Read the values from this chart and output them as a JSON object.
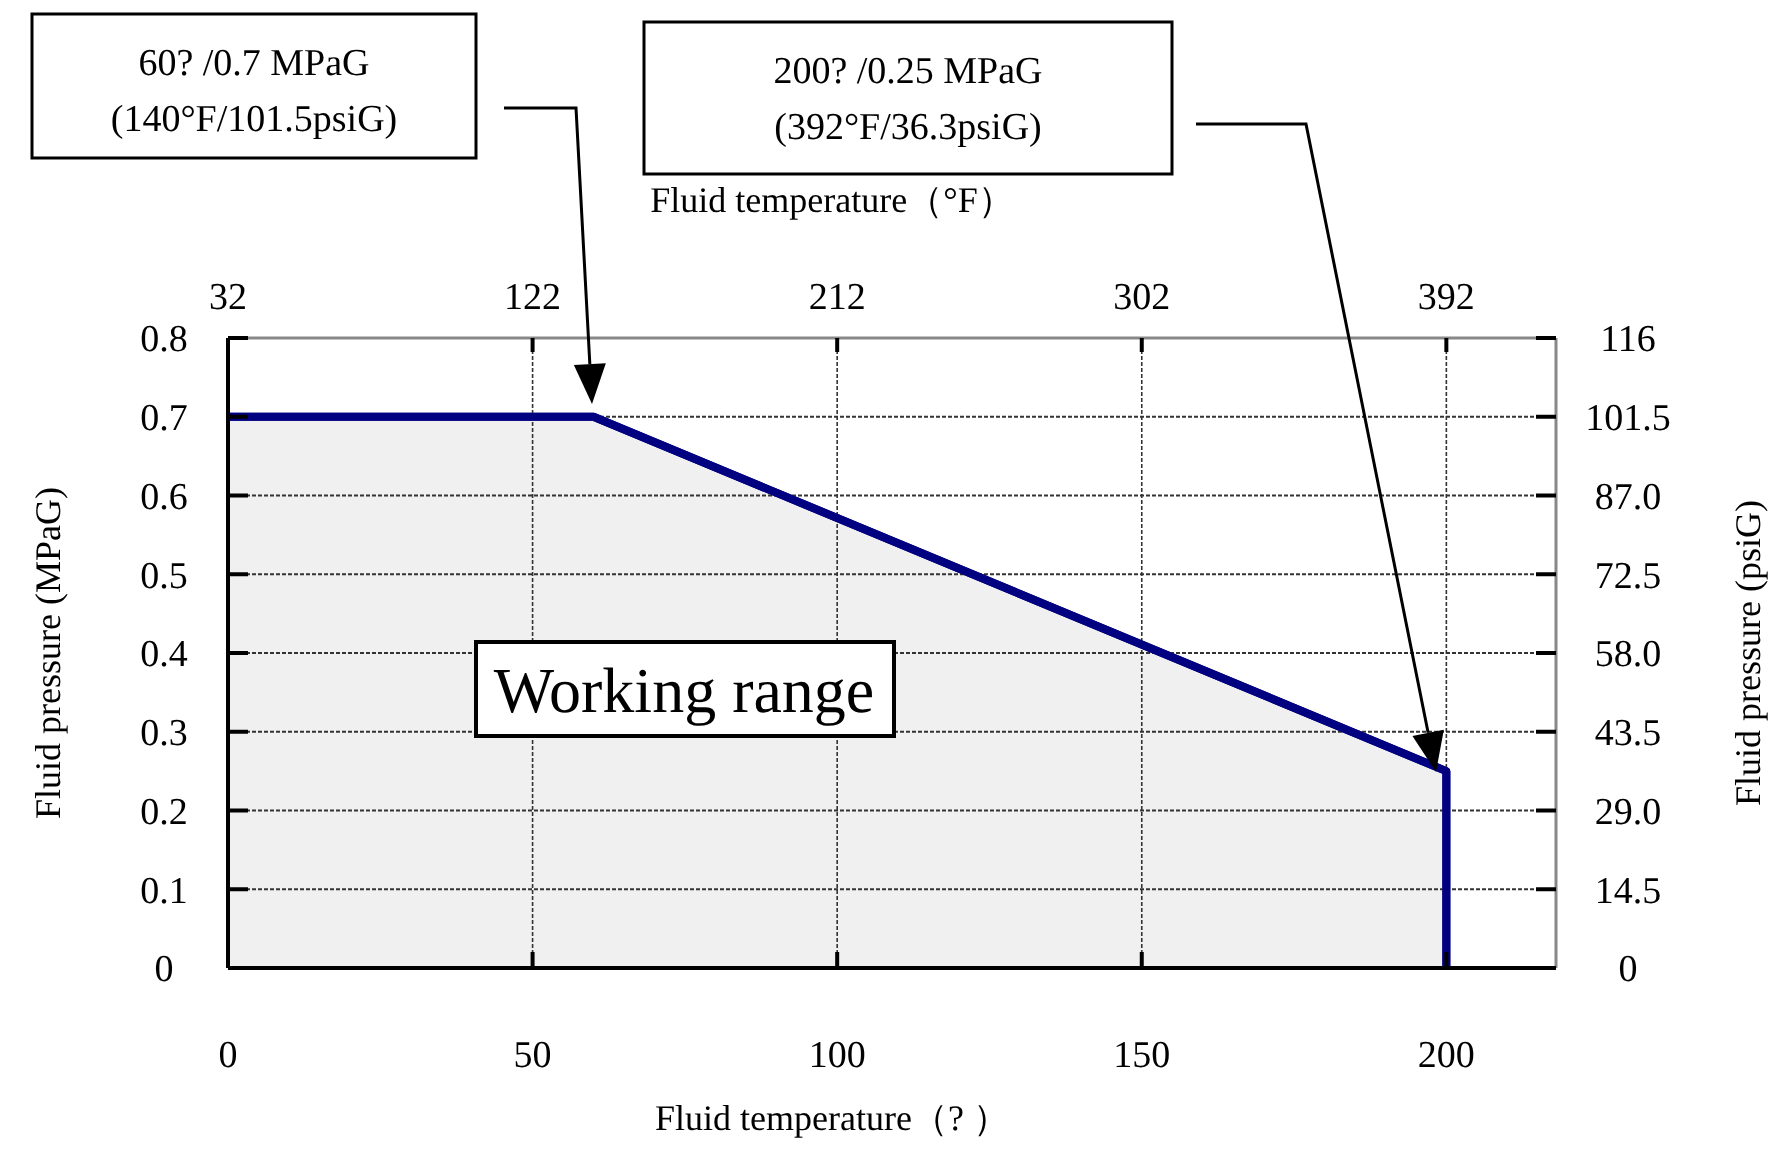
{
  "chart_data": {
    "type": "area",
    "xlabel": "Fluid temperature（? ）",
    "ylabel": "Fluid pressure (MPaG)",
    "x2label": "Fluid temperature（°F）",
    "y2label": "Fluid pressure (psiG)",
    "x": [
      0,
      60,
      200,
      200
    ],
    "series": [
      {
        "color": "#000080",
        "values": [
          0.7,
          0.7,
          0.25,
          0
        ]
      }
    ],
    "xlim": [
      0,
      218
    ],
    "xticks": [
      0,
      50,
      100,
      150,
      200
    ],
    "x2lim": [
      32,
      424.4
    ],
    "x2ticks": [
      32,
      122,
      212,
      302,
      392
    ],
    "ylim": [
      0,
      0.8
    ],
    "yticks": [
      0,
      0.1,
      0.2,
      0.3,
      0.4,
      0.5,
      0.6,
      0.7,
      0.8
    ],
    "y2lim": [
      0,
      116
    ],
    "y2ticks": [
      0,
      14.5,
      {
        "value": 29,
        "label": "29.0"
      },
      43.5,
      {
        "value": 58,
        "label": "58.0"
      },
      72.5,
      {
        "value": 87,
        "label": "87.0"
      },
      101.5,
      116
    ],
    "grid": true,
    "annotations": [
      "60?  /0.7 MPaG\n(140°F/101.5psiG)",
      "200?  /0.25 MPaG\n(392°F/36.3psiG)",
      "Working range"
    ]
  }
}
